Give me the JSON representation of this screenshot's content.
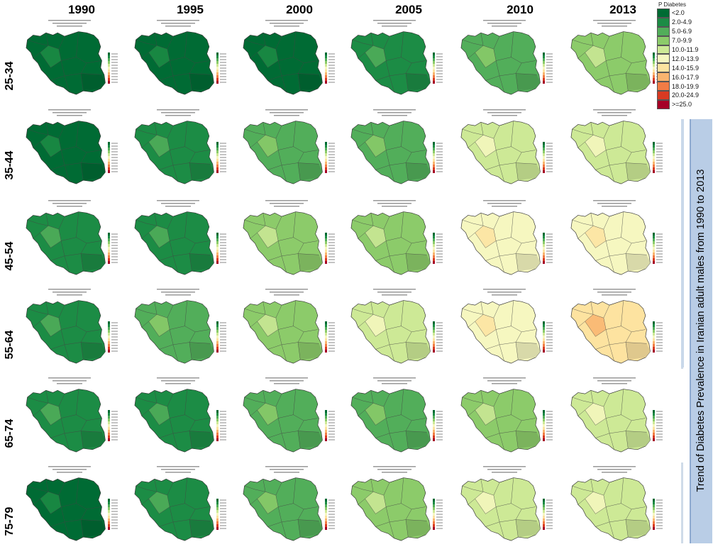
{
  "years": [
    "1990",
    "1995",
    "2000",
    "2005",
    "2010",
    "2013"
  ],
  "age_groups": [
    "25-34",
    "35-44",
    "45-54",
    "55-64",
    "65-74",
    "75-79"
  ],
  "legend": {
    "title": "P Diabetes",
    "classes": [
      {
        "label": "<2.0",
        "color": "#006b34"
      },
      {
        "label": "2.0-4.9",
        "color": "#1c8c45"
      },
      {
        "label": "5.0-6.9",
        "color": "#52ae5a"
      },
      {
        "label": "7.0-9.9",
        "color": "#8ccb6a"
      },
      {
        "label": "10.0-11.9",
        "color": "#cde996"
      },
      {
        "label": "12.0-13.9",
        "color": "#f6f7c0"
      },
      {
        "label": "14.0-15.9",
        "color": "#fde3a0"
      },
      {
        "label": "16.0-17.9",
        "color": "#f9b46f"
      },
      {
        "label": "18.0-19.9",
        "color": "#f17c45"
      },
      {
        "label": "20.0-24.9",
        "color": "#d83a22"
      },
      {
        "label": ">=25.0",
        "color": "#a50026"
      }
    ]
  },
  "side_title": "Trend of Diabetes Prevalence  in Iranian adult  males from 1990 to 2013",
  "map_grid": [
    [
      0,
      0,
      0,
      1,
      2,
      3
    ],
    [
      0,
      1,
      2,
      2,
      4,
      4
    ],
    [
      1,
      1,
      3,
      3,
      5,
      5
    ],
    [
      1,
      2,
      3,
      4,
      5,
      6
    ],
    [
      1,
      1,
      2,
      2,
      3,
      4
    ],
    [
      0,
      1,
      2,
      3,
      4,
      4
    ]
  ]
}
